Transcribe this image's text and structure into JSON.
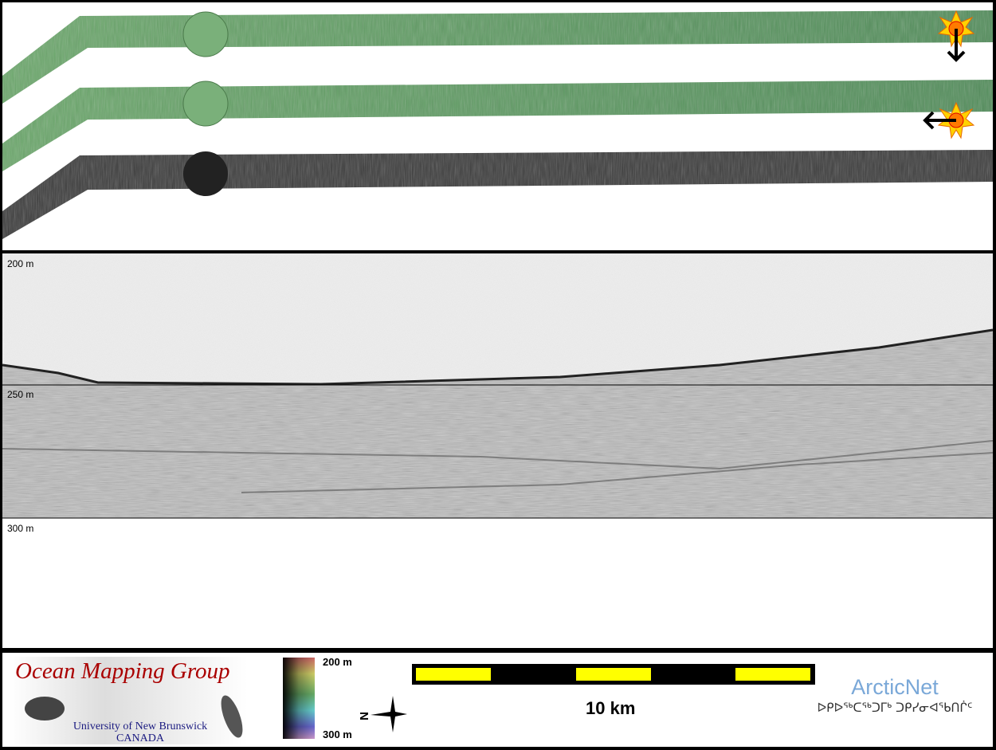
{
  "profile": {
    "depth_labels": [
      "200 m",
      "250 m",
      "300 m"
    ]
  },
  "legend": {
    "logo": {
      "title": "Ocean Mapping Group",
      "university": "University of New Brunswick",
      "country": "CANADA"
    },
    "color_ramp": {
      "top": "200 m",
      "bottom": "300 m",
      "colors": [
        "#cc6666",
        "#cccc66",
        "#66aa66",
        "#66cccc",
        "#6666cc",
        "#cc99cc"
      ]
    },
    "north_arrow": {
      "letter": "N",
      "icon": "compass-star-icon"
    },
    "scale_bar": {
      "label": "10 km",
      "colors": [
        "#000000",
        "#ffff00"
      ]
    },
    "partner": {
      "name": "ArcticNet",
      "syllabics": "ᐅᑭᐅᖅᑕᖅᑐᒥᒃ ᑐᑭᓯᓂᐊᖃᑎᒌᑦ"
    }
  },
  "swath": {
    "strip_colors": [
      "#5e9a5e",
      "#5a9460",
      "#3a3a3a"
    ],
    "markers": [
      "sun-marker-icon",
      "arrow-down-icon",
      "sun-marker-icon",
      "arrow-left-icon"
    ]
  }
}
